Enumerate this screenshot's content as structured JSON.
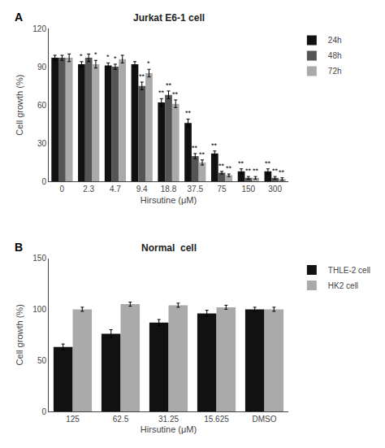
{
  "chart_data": [
    {
      "type": "bar",
      "panel": "A",
      "title": "Jurkat E6-1 cell",
      "xlabel": "Hirsutine (μM)",
      "ylabel": "Cell growth (%)",
      "categories": [
        "0",
        "2.3",
        "4.7",
        "9.4",
        "18.8",
        "37.5",
        "75",
        "150",
        "300"
      ],
      "ylim": [
        0,
        120
      ],
      "yticks": [
        0,
        30,
        60,
        90,
        120
      ],
      "grid": false,
      "series": [
        {
          "name": "24h",
          "color": "#111111",
          "values": [
            97,
            92,
            91,
            92,
            62,
            46,
            22,
            8,
            8
          ],
          "errors": [
            2,
            2,
            2,
            2,
            3,
            3,
            2,
            2,
            2
          ],
          "annotations": [
            null,
            "*",
            "*",
            null,
            "**",
            "**",
            "**",
            "**",
            "**"
          ]
        },
        {
          "name": "48h",
          "color": "#555555",
          "values": [
            97,
            97,
            90,
            75,
            68,
            20,
            7,
            3,
            3
          ],
          "errors": [
            2,
            3,
            2,
            3,
            3,
            2,
            1,
            1,
            1
          ],
          "annotations": [
            null,
            null,
            "*",
            "**",
            "**",
            "**",
            "**",
            "**",
            "**"
          ]
        },
        {
          "name": "72h",
          "color": "#aaaaaa",
          "values": [
            97,
            92,
            96,
            85,
            61,
            15,
            5,
            3,
            2
          ],
          "errors": [
            3,
            3,
            3,
            3,
            3,
            2,
            1,
            1,
            1
          ],
          "annotations": [
            null,
            "*",
            null,
            "*",
            "**",
            "**",
            "**",
            "**",
            "**"
          ]
        }
      ]
    },
    {
      "type": "bar",
      "panel": "B",
      "title": "Normal  cell",
      "xlabel": "Hirsutine (μM)",
      "ylabel": "Cell growth (%)",
      "categories": [
        "125",
        "62.5",
        "31.25",
        "15.625",
        "DMSO"
      ],
      "ylim": [
        0,
        150
      ],
      "yticks": [
        0,
        50,
        100,
        150
      ],
      "grid": false,
      "series": [
        {
          "name": "THLE-2 cell",
          "color": "#111111",
          "values": [
            63,
            76,
            87,
            96,
            100
          ],
          "errors": [
            3,
            4,
            3,
            3,
            2
          ]
        },
        {
          "name": "HK2 cell",
          "color": "#aaaaaa",
          "values": [
            100,
            105,
            104,
            102,
            100
          ],
          "errors": [
            2,
            2,
            2,
            2,
            2
          ]
        }
      ]
    }
  ]
}
